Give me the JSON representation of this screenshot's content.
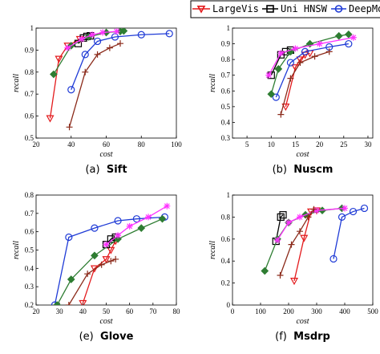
{
  "legend": [
    {
      "name": "LargeVis",
      "color": "#e31a1c",
      "marker": "triangle-down"
    },
    {
      "name": "Uni HNSW",
      "color": "#000000",
      "marker": "square"
    },
    {
      "name": "DeepMo",
      "color": "#1f3bd6",
      "marker": "circle"
    }
  ],
  "chart_data": [
    {
      "type": "line",
      "label": "(a)",
      "title": "Sift",
      "x_label": "cost",
      "y_label": "recall",
      "xlim": [
        20,
        100
      ],
      "xticks": [
        20,
        40,
        60,
        80,
        100
      ],
      "ylim": [
        0.5,
        1
      ],
      "yticks": [
        0.5,
        0.6,
        0.7,
        0.8,
        0.9,
        1
      ],
      "series": [
        {
          "color": "#e31a1c",
          "marker": "triangle-down",
          "x": [
            28,
            33,
            38,
            45
          ],
          "values": [
            0.59,
            0.86,
            0.92,
            0.95
          ]
        },
        {
          "color": "#000000",
          "marker": "square",
          "x": [
            44,
            47,
            49,
            51
          ],
          "values": [
            0.93,
            0.955,
            0.962,
            0.965
          ]
        },
        {
          "color": "#1f3bd6",
          "marker": "circle",
          "x": [
            40,
            48,
            55,
            65,
            80,
            96
          ],
          "values": [
            0.72,
            0.88,
            0.94,
            0.96,
            0.97,
            0.975
          ]
        },
        {
          "color": "#2e7d32",
          "marker": "diamond",
          "x": [
            30,
            40,
            50,
            60,
            68,
            70
          ],
          "values": [
            0.79,
            0.92,
            0.96,
            0.98,
            0.985,
            0.987
          ]
        },
        {
          "color": "#ff33ff",
          "marker": "star",
          "x": [
            38,
            46,
            52,
            58,
            66
          ],
          "values": [
            0.91,
            0.95,
            0.97,
            0.98,
            0.985
          ]
        },
        {
          "color": "#8b2a1a",
          "marker": "plus",
          "x": [
            39,
            48,
            55,
            62,
            68
          ],
          "values": [
            0.55,
            0.8,
            0.88,
            0.91,
            0.93
          ]
        }
      ]
    },
    {
      "type": "line",
      "label": "(b)",
      "title": "Nuscm",
      "x_label": "cost",
      "y_label": "recall",
      "xlim": [
        2,
        31
      ],
      "xticks": [
        5,
        10,
        15,
        20,
        25,
        30
      ],
      "ylim": [
        0.3,
        1
      ],
      "yticks": [
        0.3,
        0.4,
        0.5,
        0.6,
        0.7,
        0.8,
        0.9,
        1
      ],
      "series": [
        {
          "color": "#e31a1c",
          "marker": "triangle-down",
          "x": [
            13,
            15,
            16,
            17,
            18
          ],
          "values": [
            0.5,
            0.75,
            0.8,
            0.83,
            0.84
          ]
        },
        {
          "color": "#000000",
          "marker": "square",
          "x": [
            10,
            12,
            13,
            14
          ],
          "values": [
            0.7,
            0.83,
            0.85,
            0.86
          ]
        },
        {
          "color": "#1f3bd6",
          "marker": "circle",
          "x": [
            11,
            14,
            17,
            22,
            26
          ],
          "values": [
            0.56,
            0.78,
            0.85,
            0.88,
            0.9
          ]
        },
        {
          "color": "#2e7d32",
          "marker": "diamond",
          "x": [
            10,
            11.5,
            14,
            18,
            24,
            26
          ],
          "values": [
            0.58,
            0.74,
            0.85,
            0.9,
            0.95,
            0.96
          ]
        },
        {
          "color": "#ff33ff",
          "marker": "star",
          "x": [
            9.5,
            12,
            15,
            20,
            27
          ],
          "values": [
            0.7,
            0.84,
            0.87,
            0.9,
            0.94
          ]
        },
        {
          "color": "#8b2a1a",
          "marker": "plus",
          "x": [
            12,
            14,
            16,
            19,
            22
          ],
          "values": [
            0.45,
            0.68,
            0.78,
            0.82,
            0.85
          ]
        }
      ]
    },
    {
      "type": "line",
      "label": "(e)",
      "title": "Glove",
      "x_label": "cost",
      "y_label": "recall",
      "xlim": [
        20,
        80
      ],
      "xticks": [
        20,
        30,
        40,
        50,
        60,
        70,
        80
      ],
      "ylim": [
        0.2,
        0.8
      ],
      "yticks": [
        0.2,
        0.3,
        0.4,
        0.5,
        0.6,
        0.7,
        0.8
      ],
      "series": [
        {
          "color": "#e31a1c",
          "marker": "triangle-down",
          "x": [
            40,
            45,
            50,
            52,
            54
          ],
          "values": [
            0.21,
            0.4,
            0.45,
            0.5,
            0.55
          ]
        },
        {
          "color": "#000000",
          "marker": "square",
          "x": [
            50,
            52,
            54
          ],
          "values": [
            0.53,
            0.56,
            0.57
          ]
        },
        {
          "color": "#1f3bd6",
          "marker": "circle",
          "x": [
            28,
            34,
            45,
            55,
            63,
            75
          ],
          "values": [
            0.2,
            0.57,
            0.62,
            0.66,
            0.67,
            0.68
          ]
        },
        {
          "color": "#2e7d32",
          "marker": "diamond",
          "x": [
            29,
            35,
            45,
            55,
            65,
            74
          ],
          "values": [
            0.2,
            0.34,
            0.47,
            0.56,
            0.62,
            0.67
          ]
        },
        {
          "color": "#ff33ff",
          "marker": "star",
          "x": [
            50,
            55,
            60,
            68,
            76
          ],
          "values": [
            0.53,
            0.58,
            0.63,
            0.68,
            0.74
          ]
        },
        {
          "color": "#8b2a1a",
          "marker": "plus",
          "x": [
            34,
            42,
            48,
            52,
            54
          ],
          "values": [
            0.2,
            0.37,
            0.42,
            0.44,
            0.45
          ]
        }
      ]
    },
    {
      "type": "line",
      "label": "(f)",
      "title": "Msdrp",
      "x_label": "cost",
      "y_label": "recall",
      "xlim": [
        0,
        500
      ],
      "xticks": [
        0,
        100,
        200,
        300,
        400,
        500
      ],
      "ylim": [
        0,
        1
      ],
      "yticks": [
        0,
        0.2,
        0.4,
        0.6,
        0.8,
        1
      ],
      "series": [
        {
          "color": "#e31a1c",
          "marker": "triangle-down",
          "x": [
            220,
            255,
            280,
            300
          ],
          "values": [
            0.22,
            0.61,
            0.85,
            0.86
          ]
        },
        {
          "color": "#000000",
          "marker": "square",
          "x": [
            155,
            172,
            180
          ],
          "values": [
            0.58,
            0.8,
            0.82
          ]
        },
        {
          "color": "#1f3bd6",
          "marker": "circle",
          "x": [
            360,
            390,
            430,
            470
          ],
          "values": [
            0.42,
            0.8,
            0.85,
            0.88
          ]
        },
        {
          "color": "#2e7d32",
          "marker": "diamond",
          "x": [
            115,
            160,
            200,
            260,
            320,
            390
          ],
          "values": [
            0.31,
            0.6,
            0.75,
            0.82,
            0.86,
            0.88
          ]
        },
        {
          "color": "#ff33ff",
          "marker": "star",
          "x": [
            160,
            200,
            240,
            300,
            400
          ],
          "values": [
            0.59,
            0.75,
            0.8,
            0.86,
            0.88
          ]
        },
        {
          "color": "#8b2a1a",
          "marker": "plus",
          "x": [
            170,
            210,
            240,
            270,
            290
          ],
          "values": [
            0.27,
            0.55,
            0.67,
            0.8,
            0.87
          ]
        }
      ]
    }
  ]
}
